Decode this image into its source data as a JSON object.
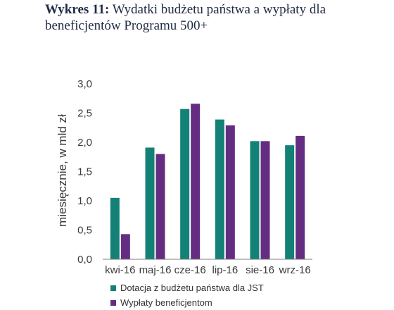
{
  "caption": {
    "label": "Wykres 11:",
    "text": "Wydatki budżetu państwa a wypłaty dla beneficjentów Programu 500+"
  },
  "chart_data": {
    "type": "bar",
    "categories": [
      "kwi-16",
      "maj-16",
      "cze-16",
      "lip-16",
      "sie-16",
      "wrz-16"
    ],
    "series": [
      {
        "name": "Dotacja z budżetu państwa dla JST",
        "color": "#138176",
        "values": [
          1.05,
          1.91,
          2.57,
          2.39,
          2.02,
          1.95
        ]
      },
      {
        "name": "Wypłaty beneficjentom",
        "color": "#642d82",
        "values": [
          0.43,
          1.8,
          2.66,
          2.29,
          2.02,
          2.11
        ]
      }
    ],
    "ylabel": "miesięcznie, w mld zł",
    "ylim": [
      0,
      3
    ],
    "yticks": [
      "0,0",
      "0,5",
      "1,0",
      "1,5",
      "2,0",
      "2,5",
      "3,0"
    ],
    "grid": false,
    "legend_position": "bottom"
  }
}
